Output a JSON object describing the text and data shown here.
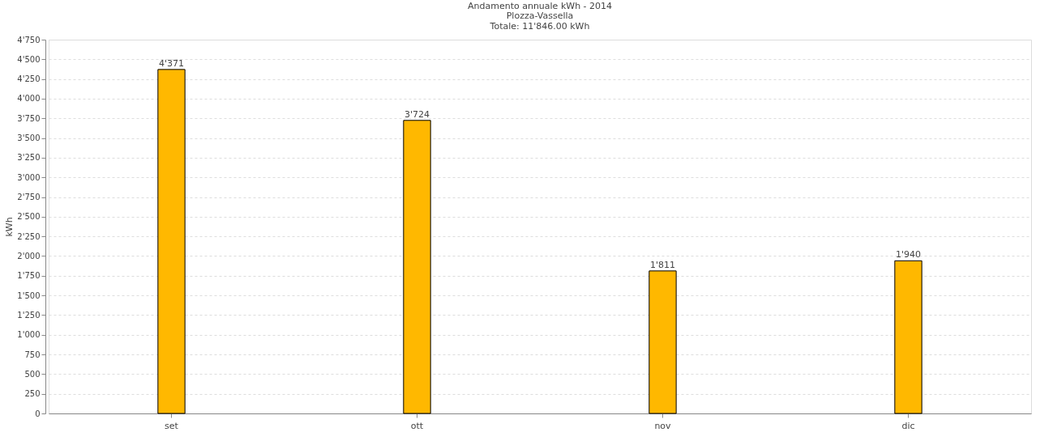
{
  "chart_data": {
    "type": "bar",
    "title": "Andamento annuale kWh - 2014",
    "subtitle": "Plozza-Vassella",
    "annotations": [
      "Totale: 11'846.00 kWh"
    ],
    "ylabel": "kWh",
    "categories": [
      "set",
      "ott",
      "nov",
      "dic"
    ],
    "values": [
      4371,
      3724,
      1811,
      1940
    ],
    "value_labels": [
      "4'371",
      "3'724",
      "1'811",
      "1'940"
    ],
    "color": "#ffb800",
    "ylim": [
      0,
      4750
    ],
    "yticks": [
      0,
      250,
      500,
      750,
      {
        "value": 1000,
        "label": "1'000"
      },
      {
        "value": 1250,
        "label": "1'250"
      },
      {
        "value": 1500,
        "label": "1'500"
      },
      {
        "value": 1750,
        "label": "1'750"
      },
      {
        "value": 2000,
        "label": "2'000"
      },
      {
        "value": 2250,
        "label": "2'250"
      },
      {
        "value": 2500,
        "label": "2'500"
      },
      {
        "value": 2750,
        "label": "2'750"
      },
      {
        "value": 3000,
        "label": "3'000"
      },
      {
        "value": 3250,
        "label": "3'250"
      },
      {
        "value": 3500,
        "label": "3'500"
      },
      {
        "value": 3750,
        "label": "3'750"
      },
      {
        "value": 4000,
        "label": "4'000"
      },
      {
        "value": 4250,
        "label": "4'250"
      },
      {
        "value": 4500,
        "label": "4'500"
      },
      {
        "value": 4750,
        "label": "4'750"
      }
    ],
    "grid": "y"
  }
}
